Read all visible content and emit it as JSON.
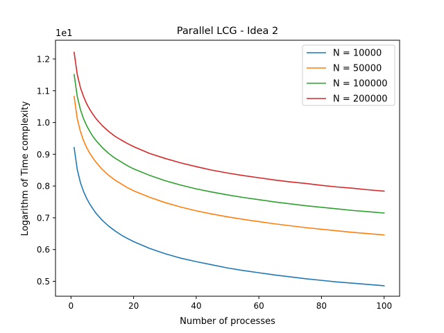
{
  "chart_data": {
    "type": "line",
    "title": "Parallel LCG - Idea 2",
    "xlabel": "Number of processes",
    "ylabel": "Logarithm of Time complexity",
    "y_offset_label": "1e1",
    "xlim": [
      -4.95,
      104.95
    ],
    "ylim": [
      0.453,
      1.259
    ],
    "x_ticks": [
      0,
      20,
      40,
      60,
      80,
      100
    ],
    "x_tick_labels": [
      "0",
      "20",
      "40",
      "60",
      "80",
      "100"
    ],
    "y_ticks": [
      0.5,
      0.6,
      0.7,
      0.8,
      0.9,
      1.0,
      1.1,
      1.2
    ],
    "y_tick_labels": [
      "0.5",
      "0.6",
      "0.7",
      "0.8",
      "0.9",
      "1.0",
      "1.1",
      "1.2"
    ],
    "grid": false,
    "legend_position": "top-right",
    "x": [
      1,
      2,
      3,
      4,
      5,
      6,
      7,
      8,
      9,
      10,
      12,
      14,
      16,
      18,
      20,
      25,
      30,
      35,
      40,
      45,
      50,
      55,
      60,
      65,
      70,
      75,
      80,
      85,
      90,
      95,
      100
    ],
    "series": [
      {
        "name": "N = 10000",
        "color": "#1f77b4",
        "values": [
          0.921,
          0.852,
          0.811,
          0.783,
          0.761,
          0.743,
          0.728,
          0.714,
          0.703,
          0.692,
          0.674,
          0.659,
          0.646,
          0.635,
          0.625,
          0.604,
          0.587,
          0.573,
          0.562,
          0.552,
          0.542,
          0.534,
          0.527,
          0.52,
          0.514,
          0.508,
          0.503,
          0.498,
          0.494,
          0.49,
          0.486
        ]
      },
      {
        "name": "N = 50000",
        "color": "#ff7f0e",
        "values": [
          1.082,
          1.012,
          0.972,
          0.943,
          0.921,
          0.903,
          0.888,
          0.875,
          0.863,
          0.852,
          0.834,
          0.819,
          0.807,
          0.795,
          0.785,
          0.765,
          0.748,
          0.734,
          0.722,
          0.712,
          0.703,
          0.695,
          0.688,
          0.681,
          0.675,
          0.669,
          0.664,
          0.659,
          0.654,
          0.65,
          0.646
        ]
      },
      {
        "name": "N = 100000",
        "color": "#2ca02c",
        "values": [
          1.151,
          1.082,
          1.041,
          1.012,
          0.99,
          0.972,
          0.956,
          0.943,
          0.932,
          0.921,
          0.903,
          0.888,
          0.876,
          0.864,
          0.854,
          0.834,
          0.817,
          0.803,
          0.791,
          0.781,
          0.772,
          0.764,
          0.757,
          0.75,
          0.744,
          0.738,
          0.733,
          0.728,
          0.723,
          0.719,
          0.715
        ]
      },
      {
        "name": "N = 200000",
        "color": "#d62728",
        "values": [
          1.221,
          1.151,
          1.11,
          1.082,
          1.059,
          1.041,
          1.026,
          1.012,
          1.001,
          0.99,
          0.972,
          0.957,
          0.945,
          0.934,
          0.924,
          0.903,
          0.887,
          0.873,
          0.861,
          0.85,
          0.841,
          0.833,
          0.826,
          0.819,
          0.813,
          0.808,
          0.802,
          0.797,
          0.793,
          0.788,
          0.784
        ]
      }
    ]
  }
}
